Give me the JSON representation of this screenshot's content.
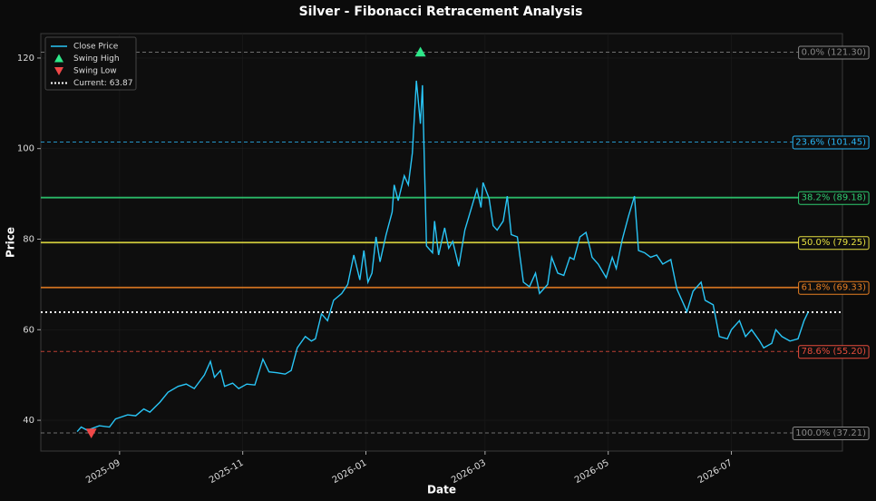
{
  "chart_data": {
    "type": "line",
    "title": "Silver - Fibonacci Retracement Analysis",
    "xlabel": "Date",
    "ylabel": "Price",
    "x": [
      "2025-08-11",
      "2025-08-13",
      "2025-08-16",
      "2025-08-22",
      "2025-08-27",
      "2025-08-30",
      "2025-09-05",
      "2025-09-09",
      "2025-09-13",
      "2025-09-16",
      "2025-09-21",
      "2025-09-25",
      "2025-09-30",
      "2025-10-04",
      "2025-10-08",
      "2025-10-13",
      "2025-10-16",
      "2025-10-18",
      "2025-10-21",
      "2025-10-23",
      "2025-10-27",
      "2025-10-30",
      "2025-11-03",
      "2025-11-07",
      "2025-11-11",
      "2025-11-14",
      "2025-11-18",
      "2025-11-22",
      "2025-11-25",
      "2025-11-28",
      "2025-12-02",
      "2025-12-05",
      "2025-12-07",
      "2025-12-10",
      "2025-12-13",
      "2025-12-16",
      "2025-12-20",
      "2025-12-23",
      "2025-12-26",
      "2025-12-29",
      "2025-12-31",
      "2026-01-02",
      "2026-01-04",
      "2026-01-06",
      "2026-01-08",
      "2026-01-11",
      "2026-01-14",
      "2026-01-15",
      "2026-01-17",
      "2026-01-20",
      "2026-01-22",
      "2026-01-24",
      "2026-01-26",
      "2026-01-28",
      "2026-01-29",
      "2026-01-31",
      "2026-02-03",
      "2026-02-04",
      "2026-02-06",
      "2026-02-09",
      "2026-02-11",
      "2026-02-13",
      "2026-02-16",
      "2026-02-19",
      "2026-02-23",
      "2026-02-25",
      "2026-02-27",
      "2026-02-28",
      "2026-03-03",
      "2026-03-05",
      "2026-03-07",
      "2026-03-10",
      "2026-03-12",
      "2026-03-14",
      "2026-03-17",
      "2026-03-20",
      "2026-03-23",
      "2026-03-26",
      "2026-03-28",
      "2026-04-01",
      "2026-04-03",
      "2026-04-06",
      "2026-04-09",
      "2026-04-12",
      "2026-04-14",
      "2026-04-17",
      "2026-04-20",
      "2026-04-22",
      "2026-04-23",
      "2026-04-26",
      "2026-04-30",
      "2026-05-03",
      "2026-05-05",
      "2026-05-08",
      "2026-05-11",
      "2026-05-14",
      "2026-05-16",
      "2026-05-19",
      "2026-05-22",
      "2026-05-25",
      "2026-05-28",
      "2026-06-01",
      "2026-06-04",
      "2026-06-09",
      "2026-06-12",
      "2026-06-16",
      "2026-06-18",
      "2026-06-22",
      "2026-06-25",
      "2026-06-29",
      "2026-07-01",
      "2026-07-05",
      "2026-07-08",
      "2026-07-11",
      "2026-07-15",
      "2026-07-17",
      "2026-07-21",
      "2026-07-23",
      "2026-07-26",
      "2026-07-30",
      "2026-08-03",
      "2026-08-06",
      "2026-08-08"
    ],
    "series": [
      {
        "name": "Close Price",
        "color": "#29c5f6",
        "values": [
          37.5,
          38.5,
          37.8,
          38.8,
          38.5,
          40.3,
          41.2,
          41.0,
          42.5,
          41.8,
          44.0,
          46.2,
          47.5,
          48.0,
          47.0,
          50.0,
          53.0,
          49.5,
          51.0,
          47.5,
          48.2,
          47.0,
          48.0,
          47.8,
          53.5,
          50.7,
          50.5,
          50.2,
          51.0,
          56.0,
          58.5,
          57.5,
          58.0,
          63.5,
          62.0,
          66.5,
          68.0,
          70.0,
          76.5,
          71.0,
          77.5,
          70.5,
          72.5,
          80.5,
          75.0,
          81.0,
          86.0,
          92.0,
          88.5,
          94.0,
          92.0,
          99.0,
          115.0,
          105.5,
          114.0,
          78.5,
          77.0,
          84.0,
          76.5,
          82.5,
          78.0,
          79.5,
          74.0,
          82.0,
          88.0,
          91.0,
          87.0,
          92.5,
          89.0,
          83.0,
          82.0,
          84.0,
          89.5,
          81.0,
          80.5,
          70.5,
          69.5,
          72.5,
          68.0,
          70.0,
          76.0,
          72.5,
          72.0,
          76.0,
          75.5,
          80.5,
          81.5,
          78.0,
          76.0,
          74.5,
          71.5,
          76.0,
          73.5,
          80.0,
          85.0,
          89.5,
          77.5,
          77.0,
          76.0,
          76.5,
          74.5,
          75.5,
          69.0,
          64.0,
          68.5,
          70.5,
          66.5,
          65.5,
          58.5,
          58.0,
          60.0,
          62.0,
          58.5,
          60.0,
          57.5,
          56.0,
          57.0,
          60.0,
          58.5,
          57.5,
          58.0,
          62.0,
          63.87
        ]
      }
    ],
    "swing_high": {
      "name": "Swing High",
      "x": "2026-01-28",
      "value": 121.3,
      "color": "#2ee88a"
    },
    "swing_low": {
      "name": "Swing Low",
      "x": "2025-08-18",
      "value": 37.21,
      "color": "#f04848"
    },
    "current": {
      "name": "Current: 63.87",
      "value": 63.87,
      "color": "#ffffff"
    },
    "levels": [
      {
        "label": "0.0% (121.30)",
        "value": 121.3,
        "color": "#888888",
        "style": "dashed"
      },
      {
        "label": "23.6% (101.45)",
        "value": 101.45,
        "color": "#29b6f6",
        "style": "dashed"
      },
      {
        "label": "38.2% (89.18)",
        "value": 89.18,
        "color": "#2ecc71",
        "style": "solid"
      },
      {
        "label": "50.0% (79.25)",
        "value": 79.25,
        "color": "#e6e040",
        "style": "solid"
      },
      {
        "label": "61.8% (69.33)",
        "value": 69.33,
        "color": "#e67e22",
        "style": "solid"
      },
      {
        "label": "78.6% (55.20)",
        "value": 55.2,
        "color": "#e74c3c",
        "style": "dashed"
      },
      {
        "label": "100.0% (37.21)",
        "value": 37.21,
        "color": "#888888",
        "style": "dashed"
      }
    ],
    "xlim": [
      "2025-07-24",
      "2026-08-25"
    ],
    "ylim": [
      33.2,
      125.4
    ],
    "xticks": [
      "2025-09",
      "2025-11",
      "2026-01",
      "2026-03",
      "2026-05",
      "2026-07"
    ],
    "yticks": [
      40,
      60,
      80,
      100,
      120
    ],
    "grid": true,
    "legend": "upper-left"
  }
}
